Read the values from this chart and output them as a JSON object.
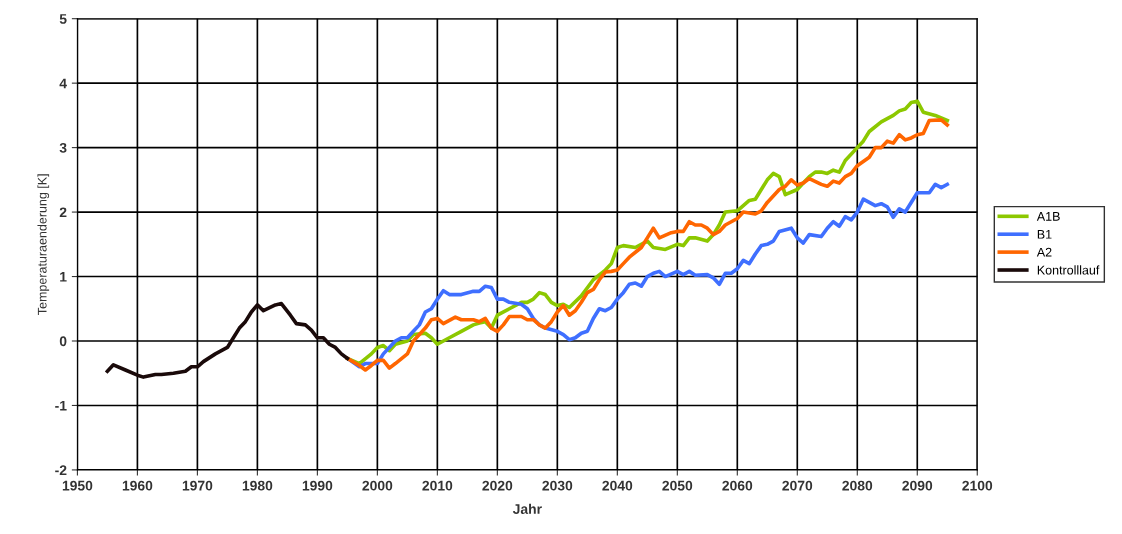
{
  "chart_data": {
    "type": "line",
    "xlabel": "Jahr",
    "ylabel": "Temperaturaenderung [K]",
    "xlim": [
      1950,
      2100
    ],
    "ylim": [
      -2,
      5
    ],
    "xticks": [
      1950,
      1960,
      1970,
      1980,
      1990,
      2000,
      2010,
      2020,
      2030,
      2040,
      2050,
      2060,
      2070,
      2080,
      2090,
      2100
    ],
    "yticks": [
      -2,
      -1,
      0,
      1,
      2,
      3,
      4,
      5
    ],
    "grid": true,
    "legend": "right",
    "marker": "none",
    "line_style": "solid",
    "series": [
      {
        "name": "A1B",
        "color": "#8cc800",
        "x": [
          1995,
          1997,
          1999,
          2000,
          2001,
          2002,
          2003,
          2005,
          2006,
          2008,
          2009,
          2010,
          2012,
          2014,
          2016,
          2017,
          2018,
          2019,
          2020,
          2022,
          2024,
          2025,
          2026,
          2027,
          2028,
          2029,
          2030,
          2031,
          2032,
          2034,
          2036,
          2038,
          2039,
          2040,
          2041,
          2043,
          2045,
          2046,
          2048,
          2050,
          2051,
          2052,
          2053,
          2055,
          2056,
          2057,
          2058,
          2060,
          2062,
          2063,
          2064,
          2065,
          2066,
          2067,
          2068,
          2070,
          2071,
          2072,
          2073,
          2074,
          2075,
          2076,
          2077,
          2078,
          2080,
          2081,
          2082,
          2084,
          2085,
          2086,
          2087,
          2088,
          2089,
          2090,
          2091,
          2093,
          2095
        ],
        "values": [
          -0.27,
          -0.35,
          -0.2,
          -0.1,
          -0.07,
          -0.15,
          -0.05,
          0.0,
          0.1,
          0.12,
          0.05,
          -0.05,
          0.05,
          0.15,
          0.25,
          0.28,
          0.3,
          0.2,
          0.4,
          0.5,
          0.6,
          0.6,
          0.65,
          0.75,
          0.72,
          0.6,
          0.55,
          0.57,
          0.52,
          0.7,
          0.95,
          1.1,
          1.2,
          1.45,
          1.48,
          1.45,
          1.55,
          1.45,
          1.42,
          1.5,
          1.48,
          1.6,
          1.6,
          1.55,
          1.65,
          1.8,
          2.0,
          2.02,
          2.18,
          2.2,
          2.35,
          2.5,
          2.6,
          2.55,
          2.27,
          2.35,
          2.45,
          2.55,
          2.62,
          2.62,
          2.6,
          2.65,
          2.62,
          2.8,
          3.0,
          3.1,
          3.25,
          3.4,
          3.45,
          3.5,
          3.57,
          3.6,
          3.7,
          3.72,
          3.55,
          3.5,
          3.42
        ]
      },
      {
        "name": "B1",
        "color": "#3f6fff",
        "x": [
          1995,
          1997,
          1998,
          2000,
          2001,
          2003,
          2004,
          2005,
          2006,
          2007,
          2008,
          2009,
          2010,
          2011,
          2012,
          2014,
          2016,
          2017,
          2018,
          2019,
          2020,
          2021,
          2022,
          2024,
          2025,
          2026,
          2027,
          2028,
          2030,
          2031,
          2032,
          2033,
          2034,
          2035,
          2036,
          2037,
          2038,
          2039,
          2040,
          2041,
          2042,
          2043,
          2044,
          2045,
          2046,
          2047,
          2048,
          2050,
          2051,
          2052,
          2053,
          2055,
          2056,
          2057,
          2058,
          2059,
          2060,
          2061,
          2062,
          2063,
          2064,
          2065,
          2066,
          2067,
          2069,
          2070,
          2071,
          2072,
          2074,
          2075,
          2076,
          2077,
          2078,
          2079,
          2080,
          2081,
          2083,
          2084,
          2085,
          2086,
          2087,
          2088,
          2090,
          2092,
          2093,
          2094,
          2095
        ],
        "values": [
          -0.27,
          -0.4,
          -0.35,
          -0.35,
          -0.2,
          0.0,
          0.05,
          0.05,
          0.15,
          0.25,
          0.45,
          0.5,
          0.65,
          0.78,
          0.72,
          0.72,
          0.77,
          0.77,
          0.85,
          0.83,
          0.65,
          0.65,
          0.6,
          0.57,
          0.5,
          0.35,
          0.25,
          0.2,
          0.15,
          0.1,
          0.02,
          0.05,
          0.12,
          0.15,
          0.35,
          0.5,
          0.47,
          0.52,
          0.65,
          0.75,
          0.88,
          0.9,
          0.85,
          1.0,
          1.05,
          1.08,
          1.0,
          1.08,
          1.03,
          1.08,
          1.02,
          1.03,
          0.98,
          0.88,
          1.05,
          1.05,
          1.12,
          1.25,
          1.2,
          1.35,
          1.48,
          1.5,
          1.55,
          1.7,
          1.75,
          1.6,
          1.52,
          1.65,
          1.62,
          1.75,
          1.85,
          1.78,
          1.93,
          1.88,
          2.0,
          2.2,
          2.1,
          2.13,
          2.08,
          1.92,
          2.05,
          2.0,
          2.3,
          2.3,
          2.43,
          2.38,
          2.43
        ]
      },
      {
        "name": "A2",
        "color": "#ff6600",
        "x": [
          1995,
          1997,
          1998,
          1999,
          2000,
          2001,
          2002,
          2003,
          2005,
          2006,
          2008,
          2009,
          2010,
          2011,
          2013,
          2014,
          2016,
          2017,
          2018,
          2019,
          2020,
          2021,
          2022,
          2024,
          2025,
          2026,
          2027,
          2028,
          2029,
          2030,
          2031,
          2032,
          2033,
          2034,
          2035,
          2036,
          2037,
          2038,
          2039,
          2040,
          2041,
          2042,
          2044,
          2045,
          2046,
          2047,
          2049,
          2050,
          2051,
          2052,
          2053,
          2054,
          2055,
          2056,
          2057,
          2058,
          2060,
          2061,
          2063,
          2064,
          2065,
          2067,
          2068,
          2069,
          2070,
          2071,
          2072,
          2074,
          2075,
          2076,
          2077,
          2078,
          2079,
          2080,
          2082,
          2083,
          2084,
          2085,
          2086,
          2087,
          2088,
          2089,
          2090,
          2091,
          2092,
          2094,
          2095
        ],
        "values": [
          -0.27,
          -0.38,
          -0.45,
          -0.38,
          -0.3,
          -0.3,
          -0.42,
          -0.35,
          -0.2,
          0.0,
          0.2,
          0.33,
          0.35,
          0.27,
          0.37,
          0.33,
          0.33,
          0.3,
          0.35,
          0.2,
          0.15,
          0.25,
          0.38,
          0.38,
          0.33,
          0.33,
          0.25,
          0.2,
          0.3,
          0.45,
          0.55,
          0.4,
          0.47,
          0.6,
          0.75,
          0.8,
          0.95,
          1.07,
          1.08,
          1.1,
          1.2,
          1.3,
          1.45,
          1.6,
          1.75,
          1.6,
          1.68,
          1.7,
          1.7,
          1.85,
          1.8,
          1.8,
          1.75,
          1.65,
          1.7,
          1.8,
          1.9,
          2.0,
          1.97,
          2.02,
          2.15,
          2.35,
          2.4,
          2.5,
          2.42,
          2.45,
          2.52,
          2.43,
          2.4,
          2.48,
          2.45,
          2.55,
          2.6,
          2.72,
          2.85,
          3.0,
          3.0,
          3.1,
          3.07,
          3.2,
          3.12,
          3.15,
          3.2,
          3.22,
          3.42,
          3.43,
          3.35
        ]
      },
      {
        "name": "Kontrolllauf",
        "color": "#1a0a0a",
        "x": [
          1955,
          1956,
          1958,
          1960,
          1961,
          1963,
          1964,
          1966,
          1968,
          1969,
          1970,
          1971,
          1973,
          1975,
          1976,
          1977,
          1978,
          1979,
          1980,
          1981,
          1983,
          1984,
          1985.5,
          1986.5,
          1988,
          1989,
          1990,
          1991,
          1992,
          1993,
          1994,
          1995
        ],
        "values": [
          -0.47,
          -0.37,
          -0.45,
          -0.53,
          -0.56,
          -0.52,
          -0.52,
          -0.5,
          -0.47,
          -0.4,
          -0.4,
          -0.32,
          -0.2,
          -0.1,
          0.05,
          0.2,
          0.3,
          0.45,
          0.56,
          0.47,
          0.56,
          0.58,
          0.4,
          0.27,
          0.25,
          0.17,
          0.05,
          0.05,
          -0.05,
          -0.1,
          -0.2,
          -0.27
        ]
      }
    ]
  }
}
